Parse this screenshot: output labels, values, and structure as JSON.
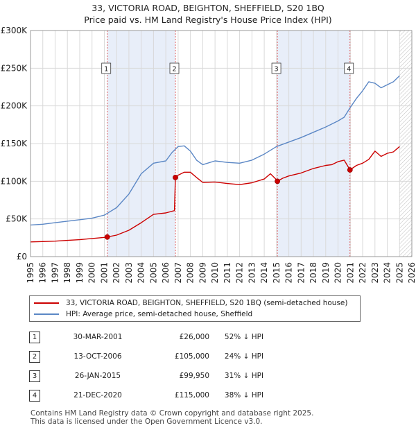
{
  "title_line1": "33, VICTORIA ROAD, BEIGHTON, SHEFFIELD, S20 1BQ",
  "title_line2": "Price paid vs. HM Land Registry's House Price Index (HPI)",
  "chart_data": {
    "type": "line",
    "xlim": [
      1995,
      2026
    ],
    "ylim": [
      0,
      300000
    ],
    "y_ticks": [
      0,
      50000,
      100000,
      150000,
      200000,
      250000,
      300000
    ],
    "y_tick_labels": [
      "£0",
      "£50K",
      "£100K",
      "£150K",
      "£200K",
      "£250K",
      "£300K"
    ],
    "x_ticks": [
      1995,
      1996,
      1997,
      1998,
      1999,
      2000,
      2001,
      2002,
      2003,
      2004,
      2005,
      2006,
      2007,
      2008,
      2009,
      2010,
      2011,
      2012,
      2013,
      2014,
      2015,
      2016,
      2017,
      2018,
      2019,
      2020,
      2021,
      2022,
      2023,
      2024,
      2025,
      2026
    ],
    "grid": true,
    "series": [
      {
        "name": "33, VICTORIA ROAD, BEIGHTON, SHEFFIELD, S20 1BQ (semi-detached house)",
        "color": "#cc0000",
        "x": [
          1995.0,
          1996.0,
          1997.0,
          1998.0,
          1999.0,
          2000.0,
          2001.0,
          2001.24,
          2002.0,
          2003.0,
          2004.0,
          2005.0,
          2006.0,
          2006.7,
          2006.78,
          2007.0,
          2007.5,
          2008.0,
          2008.5,
          2009.0,
          2010.0,
          2011.0,
          2012.0,
          2013.0,
          2014.0,
          2014.5,
          2015.0,
          2015.07,
          2015.5,
          2016.0,
          2017.0,
          2018.0,
          2019.0,
          2019.5,
          2020.0,
          2020.5,
          2020.97,
          2021.5,
          2022.0,
          2022.5,
          2023.0,
          2023.5,
          2024.0,
          2024.5,
          2025.0
        ],
        "y": [
          19500,
          20000,
          20500,
          21500,
          22500,
          24000,
          25500,
          26000,
          28500,
          35000,
          45000,
          56000,
          58000,
          61000,
          105000,
          108000,
          112000,
          112000,
          105000,
          98500,
          99000,
          97000,
          95500,
          98000,
          103000,
          110000,
          102000,
          99950,
          104000,
          107000,
          111000,
          117000,
          121000,
          122000,
          126000,
          128000,
          115000,
          121000,
          124000,
          129000,
          140000,
          133000,
          137000,
          139000,
          146000
        ]
      },
      {
        "name": "HPI: Average price, semi-detached house, Sheffield",
        "color": "#5b87c5",
        "x": [
          1995.0,
          1996.0,
          1997.0,
          1998.0,
          1999.0,
          2000.0,
          2001.0,
          2002.0,
          2003.0,
          2004.0,
          2005.0,
          2006.0,
          2006.5,
          2007.0,
          2007.5,
          2008.0,
          2008.5,
          2009.0,
          2010.0,
          2011.0,
          2012.0,
          2013.0,
          2014.0,
          2015.0,
          2016.0,
          2017.0,
          2018.0,
          2019.0,
          2020.0,
          2020.5,
          2021.0,
          2021.5,
          2022.0,
          2022.5,
          2023.0,
          2023.5,
          2024.0,
          2024.5,
          2025.0
        ],
        "y": [
          42000,
          43000,
          45000,
          47000,
          49000,
          51000,
          55000,
          65000,
          83000,
          110000,
          124000,
          127000,
          138000,
          146000,
          147000,
          140000,
          128000,
          122000,
          127000,
          125000,
          124000,
          128000,
          136000,
          146000,
          152000,
          158000,
          165000,
          172000,
          180000,
          185000,
          198000,
          210000,
          220000,
          232000,
          230000,
          224000,
          228000,
          232000,
          240000
        ]
      }
    ],
    "sale_markers": [
      {
        "id": "1",
        "x": 2001.24,
        "y": 26000
      },
      {
        "id": "2",
        "x": 2006.78,
        "y": 105000
      },
      {
        "id": "3",
        "x": 2015.07,
        "y": 99950
      },
      {
        "id": "4",
        "x": 2020.97,
        "y": 115000
      }
    ],
    "shaded_spans": [
      [
        2001.24,
        2006.78
      ],
      [
        2015.07,
        2020.97
      ]
    ],
    "future_hatch_from": 2025.0
  },
  "legend": {
    "property_label": "33, VICTORIA ROAD, BEIGHTON, SHEFFIELD, S20 1BQ (semi-detached house)",
    "hpi_label": "HPI: Average price, semi-detached house, Sheffield"
  },
  "sales": [
    {
      "marker": "1",
      "date": "30-MAR-2001",
      "price": "£26,000",
      "hpi": "52% ↓ HPI"
    },
    {
      "marker": "2",
      "date": "13-OCT-2006",
      "price": "£105,000",
      "hpi": "24% ↓ HPI"
    },
    {
      "marker": "3",
      "date": "26-JAN-2015",
      "price": "£99,950",
      "hpi": "31% ↓ HPI"
    },
    {
      "marker": "4",
      "date": "21-DEC-2020",
      "price": "£115,000",
      "hpi": "38% ↓ HPI"
    }
  ],
  "footer_line1": "Contains HM Land Registry data © Crown copyright and database right 2025.",
  "footer_line2": "This data is licensed under the Open Government Licence v3.0."
}
